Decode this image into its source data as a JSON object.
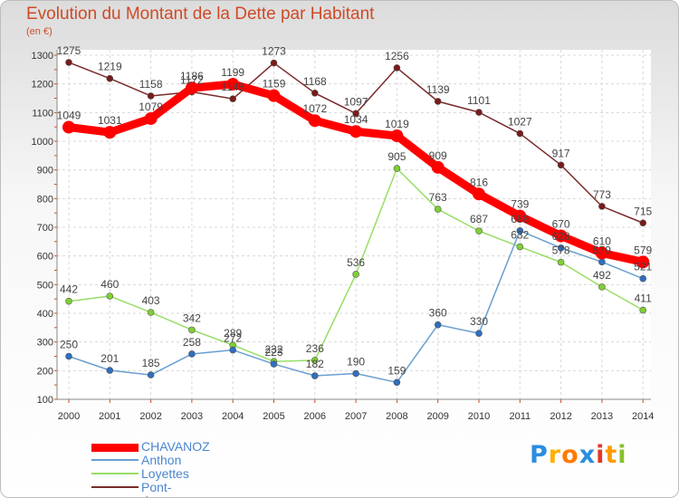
{
  "title": "Evolution du Montant de la Dette par Habitant",
  "unit": "(en €)",
  "logo": {
    "letters": [
      "P",
      "r",
      "o",
      "x",
      "i",
      "t",
      "i"
    ],
    "colors": [
      "#2a8de0",
      "#ffb000",
      "#ff7a00",
      "#2a8de0",
      "#e2382b",
      "#ff9a00",
      "#8ac02f"
    ]
  },
  "chart_data": {
    "type": "line",
    "title": "Evolution du Montant de la Dette par Habitant",
    "ylabel": "(en €)",
    "x": [
      "2000",
      "2001",
      "2002",
      "2003",
      "2004",
      "2005",
      "2006",
      "2007",
      "2008",
      "2009",
      "2010",
      "2011",
      "2012",
      "2013",
      "2014"
    ],
    "ylim": [
      100,
      1300
    ],
    "yticks": [
      "100",
      "200",
      "300",
      "400",
      "500",
      "600",
      "700",
      "800",
      "900",
      "1000",
      "1100",
      "1200",
      "1300"
    ],
    "grid": true,
    "legend_position": "bottom-left",
    "series": [
      {
        "name": "CHAVANOZ",
        "color": "#ff0000",
        "values": [
          1049,
          1031,
          1079,
          1186,
          1199,
          1159,
          1072,
          1034,
          1019,
          909,
          816,
          739,
          670,
          610,
          579
        ],
        "labels": [
          "1049",
          "1031",
          "1079",
          "1186",
          "1199",
          "1159",
          "1072",
          "1034",
          "1019",
          "909",
          "816",
          "739",
          "670",
          "610",
          "579"
        ]
      },
      {
        "name": "Anthon",
        "color": "#6a9fd0",
        "values": [
          250,
          201,
          185,
          258,
          272,
          223,
          182,
          190,
          159,
          360,
          330,
          688,
          628,
          579,
          521
        ],
        "labels": [
          "250",
          "201",
          "185",
          "258",
          "272",
          "223",
          "182",
          "190",
          "159",
          "360",
          "330",
          "688",
          "628",
          "579",
          "521"
        ]
      },
      {
        "name": "Loyettes",
        "color": "#99dd66",
        "values": [
          442,
          460,
          403,
          342,
          289,
          232,
          236,
          536,
          905,
          763,
          687,
          632,
          578,
          492,
          411
        ],
        "labels": [
          "442",
          "460",
          "403",
          "342",
          "289",
          "232",
          "236",
          "536",
          "905",
          "763",
          "687",
          "632",
          "578",
          "492",
          "411"
        ]
      },
      {
        "name": "Pont-de-Chéruy",
        "color": "#7a2a2a",
        "values": [
          1275,
          1219,
          1158,
          1172,
          1148,
          1273,
          1168,
          1097,
          1256,
          1139,
          1101,
          1027,
          917,
          773,
          715
        ],
        "labels": [
          "1275",
          "1219",
          "1158",
          "1172",
          "1148",
          "1273",
          "1168",
          "1097",
          "1256",
          "1139",
          "1101",
          "1027",
          "917",
          "773",
          "715"
        ]
      }
    ]
  }
}
